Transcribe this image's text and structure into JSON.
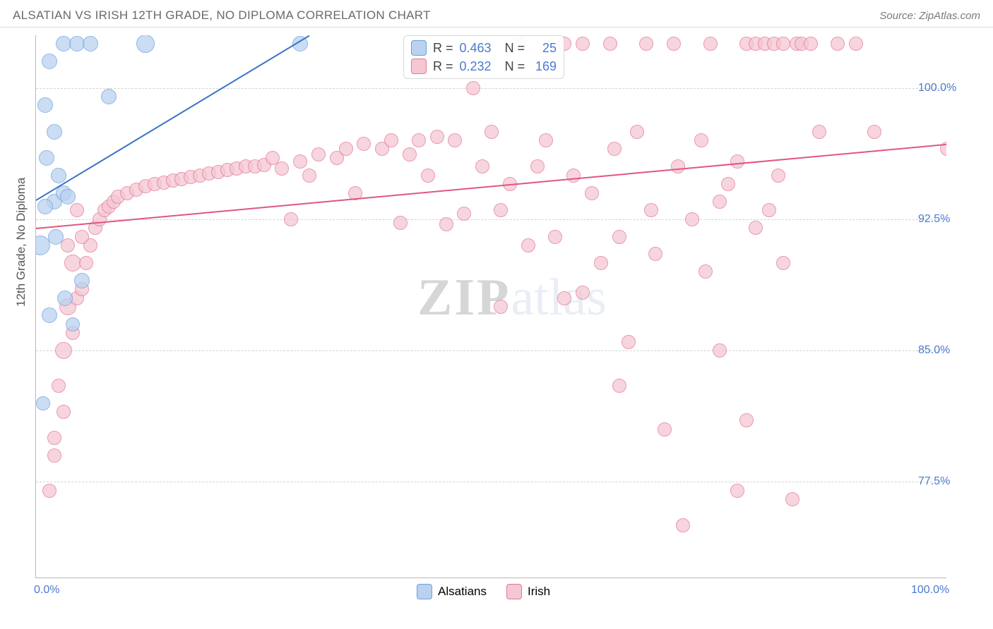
{
  "header": {
    "title": "ALSATIAN VS IRISH 12TH GRADE, NO DIPLOMA CORRELATION CHART",
    "source_prefix": "Source: ",
    "source": "ZipAtlas.com"
  },
  "chart": {
    "ylabel": "12th Grade, No Diploma",
    "xlim": [
      0,
      100
    ],
    "ylim": [
      72,
      103
    ],
    "ytick_values": [
      77.5,
      85.0,
      92.5,
      100.0
    ],
    "ytick_labels": [
      "77.5%",
      "85.0%",
      "92.5%",
      "100.0%"
    ],
    "xtick_values": [
      0,
      10,
      20,
      30,
      40,
      50,
      60,
      70,
      80,
      90,
      100
    ],
    "x_axis_label_left": "0.0%",
    "x_axis_label_right": "100.0%",
    "grid_color": "#d2d2d2",
    "axis_color": "#b9b9b9",
    "background_color": "#ffffff",
    "marker_radius": 11,
    "marker_stroke_width": 1.2,
    "regline_width": 2
  },
  "series": {
    "alsatians": {
      "label": "Alsatians",
      "fill": "#b9d2ef",
      "stroke": "#6a9fde",
      "line_color": "#3a74c9",
      "R": "0.463",
      "N": "25",
      "regression": {
        "x1": 0,
        "y1": 93.6,
        "x2": 30,
        "y2": 103.0
      },
      "points": [
        [
          0.5,
          91.0,
          14
        ],
        [
          2.0,
          93.5,
          11
        ],
        [
          1.0,
          93.2,
          11
        ],
        [
          3.0,
          94.0,
          11
        ],
        [
          3.5,
          93.8,
          11
        ],
        [
          2.5,
          95.0,
          11
        ],
        [
          1.2,
          96.0,
          11
        ],
        [
          2.0,
          97.5,
          11
        ],
        [
          1.0,
          99.0,
          11
        ],
        [
          1.5,
          101.5,
          11
        ],
        [
          3.0,
          102.5,
          11
        ],
        [
          4.5,
          102.5,
          11
        ],
        [
          6.0,
          102.5,
          11
        ],
        [
          12.0,
          102.5,
          13
        ],
        [
          8.0,
          99.5,
          11
        ],
        [
          5.0,
          89.0,
          11
        ],
        [
          4.0,
          86.5,
          10
        ],
        [
          3.2,
          88.0,
          11
        ],
        [
          1.5,
          87.0,
          11
        ],
        [
          29.0,
          102.5,
          11
        ],
        [
          0.8,
          82.0,
          10
        ],
        [
          2.2,
          91.5,
          11
        ]
      ]
    },
    "irish": {
      "label": "Irish",
      "fill": "#f5c7d3",
      "stroke": "#e37795",
      "line_color": "#e0567e",
      "R": "0.232",
      "N": "169",
      "regression": {
        "x1": 0,
        "y1": 92.0,
        "x2": 100,
        "y2": 96.8
      },
      "points": [
        [
          2.0,
          80.0,
          10
        ],
        [
          3.0,
          81.5,
          10
        ],
        [
          2.5,
          83.0,
          10
        ],
        [
          3.0,
          85.0,
          12
        ],
        [
          4.0,
          86.0,
          10
        ],
        [
          3.5,
          87.5,
          12
        ],
        [
          4.5,
          88.0,
          10
        ],
        [
          5.0,
          88.5,
          10
        ],
        [
          4.0,
          90.0,
          12
        ],
        [
          5.5,
          90.0,
          10
        ],
        [
          6.0,
          91.0,
          10
        ],
        [
          5.0,
          91.5,
          10
        ],
        [
          6.5,
          92.0,
          10
        ],
        [
          7.0,
          92.5,
          10
        ],
        [
          7.5,
          93.0,
          10
        ],
        [
          8.0,
          93.2,
          10
        ],
        [
          8.5,
          93.5,
          10
        ],
        [
          9.0,
          93.8,
          10
        ],
        [
          10.0,
          94.0,
          10
        ],
        [
          11.0,
          94.2,
          10
        ],
        [
          12.0,
          94.4,
          10
        ],
        [
          13.0,
          94.5,
          10
        ],
        [
          14.0,
          94.6,
          10
        ],
        [
          15.0,
          94.7,
          10
        ],
        [
          16.0,
          94.8,
          10
        ],
        [
          17.0,
          94.9,
          10
        ],
        [
          18.0,
          95.0,
          10
        ],
        [
          19.0,
          95.1,
          10
        ],
        [
          20.0,
          95.2,
          10
        ],
        [
          21.0,
          95.3,
          10
        ],
        [
          22.0,
          95.4,
          10
        ],
        [
          23.0,
          95.5,
          10
        ],
        [
          24.0,
          95.5,
          10
        ],
        [
          25.0,
          95.6,
          10
        ],
        [
          26.0,
          96.0,
          10
        ],
        [
          27.0,
          95.4,
          10
        ],
        [
          28.0,
          92.5,
          10
        ],
        [
          29.0,
          95.8,
          10
        ],
        [
          30.0,
          95.0,
          10
        ],
        [
          31.0,
          96.2,
          10
        ],
        [
          33.0,
          96.0,
          10
        ],
        [
          34.0,
          96.5,
          10
        ],
        [
          35.0,
          94.0,
          10
        ],
        [
          36.0,
          96.8,
          10
        ],
        [
          38.0,
          96.5,
          10
        ],
        [
          39.0,
          97.0,
          10
        ],
        [
          40.0,
          92.3,
          10
        ],
        [
          41.0,
          96.2,
          10
        ],
        [
          42.0,
          97.0,
          10
        ],
        [
          43.0,
          95.0,
          10
        ],
        [
          44.0,
          97.2,
          10
        ],
        [
          45.0,
          92.2,
          10
        ],
        [
          46.0,
          97.0,
          10
        ],
        [
          47.0,
          92.8,
          10
        ],
        [
          48.0,
          100.0,
          10
        ],
        [
          49.0,
          95.5,
          10
        ],
        [
          50.0,
          97.5,
          10
        ],
        [
          51.0,
          93.0,
          10
        ],
        [
          51.0,
          87.5,
          10
        ],
        [
          52.0,
          94.5,
          10
        ],
        [
          53.0,
          102.5,
          10
        ],
        [
          54.0,
          91.0,
          10
        ],
        [
          55.0,
          95.5,
          10
        ],
        [
          56.0,
          97.0,
          10
        ],
        [
          57.0,
          91.5,
          10
        ],
        [
          58.0,
          102.5,
          10
        ],
        [
          58.0,
          88.0,
          10
        ],
        [
          59.0,
          95.0,
          10
        ],
        [
          60.0,
          102.5,
          10
        ],
        [
          60.0,
          88.3,
          10
        ],
        [
          61.0,
          94.0,
          10
        ],
        [
          62.0,
          90.0,
          10
        ],
        [
          63.0,
          102.5,
          10
        ],
        [
          63.5,
          96.5,
          10
        ],
        [
          64.0,
          91.5,
          10
        ],
        [
          64.0,
          83.0,
          10
        ],
        [
          65.0,
          85.5,
          10
        ],
        [
          66.0,
          97.5,
          10
        ],
        [
          67.0,
          102.5,
          10
        ],
        [
          67.5,
          93.0,
          10
        ],
        [
          68.0,
          90.5,
          10
        ],
        [
          69.0,
          80.5,
          10
        ],
        [
          70.0,
          102.5,
          10
        ],
        [
          70.5,
          95.5,
          10
        ],
        [
          71.0,
          75.0,
          10
        ],
        [
          72.0,
          92.5,
          10
        ],
        [
          73.0,
          97.0,
          10
        ],
        [
          73.5,
          89.5,
          10
        ],
        [
          74.0,
          102.5,
          10
        ],
        [
          75.0,
          93.5,
          10
        ],
        [
          75.0,
          85.0,
          10
        ],
        [
          76.0,
          94.5,
          10
        ],
        [
          77.0,
          95.8,
          10
        ],
        [
          77.0,
          77.0,
          10
        ],
        [
          78.0,
          102.5,
          10
        ],
        [
          78.0,
          81.0,
          10
        ],
        [
          79.0,
          92.0,
          10
        ],
        [
          79.0,
          102.5,
          10
        ],
        [
          80.0,
          102.5,
          10
        ],
        [
          80.5,
          93.0,
          10
        ],
        [
          81.0,
          102.5,
          10
        ],
        [
          81.5,
          95.0,
          10
        ],
        [
          82.0,
          102.5,
          10
        ],
        [
          82.0,
          90.0,
          10
        ],
        [
          83.0,
          76.5,
          10
        ],
        [
          83.5,
          102.5,
          10
        ],
        [
          84.0,
          102.5,
          10
        ],
        [
          85.0,
          102.5,
          10
        ],
        [
          86.0,
          97.5,
          10
        ],
        [
          88.0,
          102.5,
          10
        ],
        [
          90.0,
          102.5,
          10
        ],
        [
          92.0,
          97.5,
          10
        ],
        [
          100.0,
          96.5,
          10
        ],
        [
          1.5,
          77.0,
          10
        ],
        [
          2.0,
          79.0,
          10
        ],
        [
          3.5,
          91.0,
          10
        ],
        [
          4.5,
          93.0,
          10
        ]
      ]
    }
  },
  "watermark": {
    "part1": "ZIP",
    "part2": "atlas"
  },
  "legend_box": {
    "R_label": "R =",
    "N_label": "N ="
  }
}
